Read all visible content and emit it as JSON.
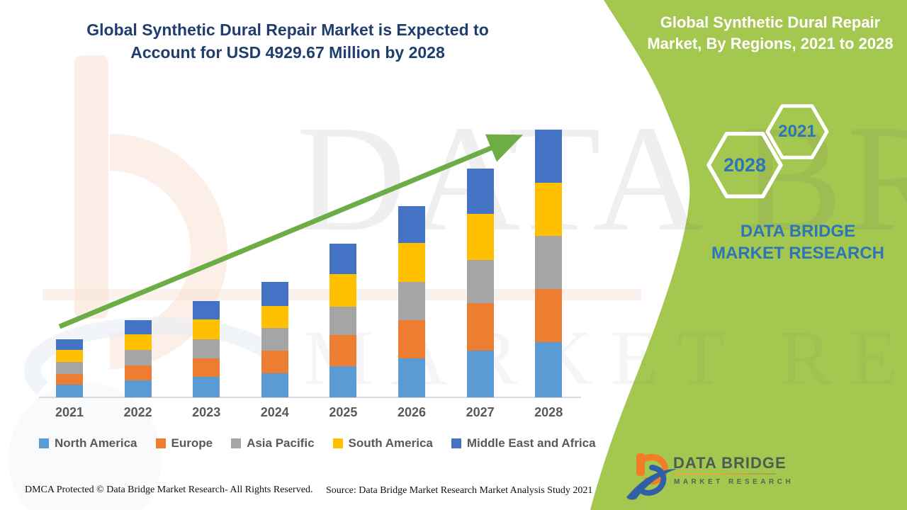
{
  "page": {
    "background_color": "#FFFFFF"
  },
  "header": {
    "main_title": "Global Synthetic Dural Repair Market is Expected to Account for USD 4929.67 Million by 2028",
    "title_color": "#1F3E6E"
  },
  "side_panel": {
    "title": "Global Synthetic Dural Repair Market, By Regions, 2021 to 2028",
    "background_color": "#A4C750",
    "text_color": "#FFFFFF",
    "hexagon_years": {
      "large": "2028",
      "small": "2021"
    },
    "hexagon_text_color": "#2E75B6",
    "brand_text": "DATA BRIDGE MARKET RESEARCH"
  },
  "chart_data": {
    "type": "bar",
    "stacked": true,
    "title": "Global Synthetic Dural Repair Market, By Regions, 2021 to 2028",
    "unit": "USD Million",
    "categories": [
      "2021",
      "2022",
      "2023",
      "2024",
      "2025",
      "2026",
      "2027",
      "2028"
    ],
    "series": [
      {
        "name": "North America",
        "color": "#5B9BD5",
        "values": [
          235,
          313,
          378,
          443,
          574,
          717,
          861,
          1017
        ]
      },
      {
        "name": "Europe",
        "color": "#ED7D31",
        "values": [
          196,
          274,
          339,
          417,
          574,
          704,
          874,
          978
        ]
      },
      {
        "name": "Asia Pacific",
        "color": "#A5A5A5",
        "values": [
          222,
          287,
          352,
          417,
          522,
          704,
          795,
          978
        ]
      },
      {
        "name": "South America",
        "color": "#FFC000",
        "values": [
          222,
          287,
          365,
          404,
          600,
          717,
          848,
          978
        ]
      },
      {
        "name": "Middle East and Africa",
        "color": "#4472C4",
        "values": [
          196,
          261,
          339,
          443,
          561,
          678,
          835,
          978
        ]
      }
    ],
    "totals_estimated": [
      1071,
      1422,
      1773,
      2124,
      2831,
      3520,
      4213,
      4929.67
    ],
    "annotation": "USD 4929.67 Million by 2028",
    "ylim": [
      0,
      5000
    ],
    "grid": false,
    "legend_position": "bottom",
    "trend_arrow_color": "#6CAE45",
    "axis_line_color": "#D9D9D9",
    "tick_label_color": "#595959"
  },
  "watermark": {
    "line1": "DATA BRIDGE",
    "line2": "MARKET RESEARCH"
  },
  "brand_logo": {
    "name": "DATA BRIDGE",
    "subtitle": "MARKET RESEARCH"
  },
  "footer": {
    "dmca": "DMCA Protected © Data Bridge Market Research- All Rights Reserved.",
    "source": "Source: Data Bridge Market Research Market Analysis Study 2021"
  },
  "icons": {
    "trend_arrow": "diagonal-up-right-arrow",
    "hexagon_large": "hexagon-outline",
    "hexagon_small": "hexagon-outline",
    "brand_mark": "data-bridge-b-logo"
  }
}
